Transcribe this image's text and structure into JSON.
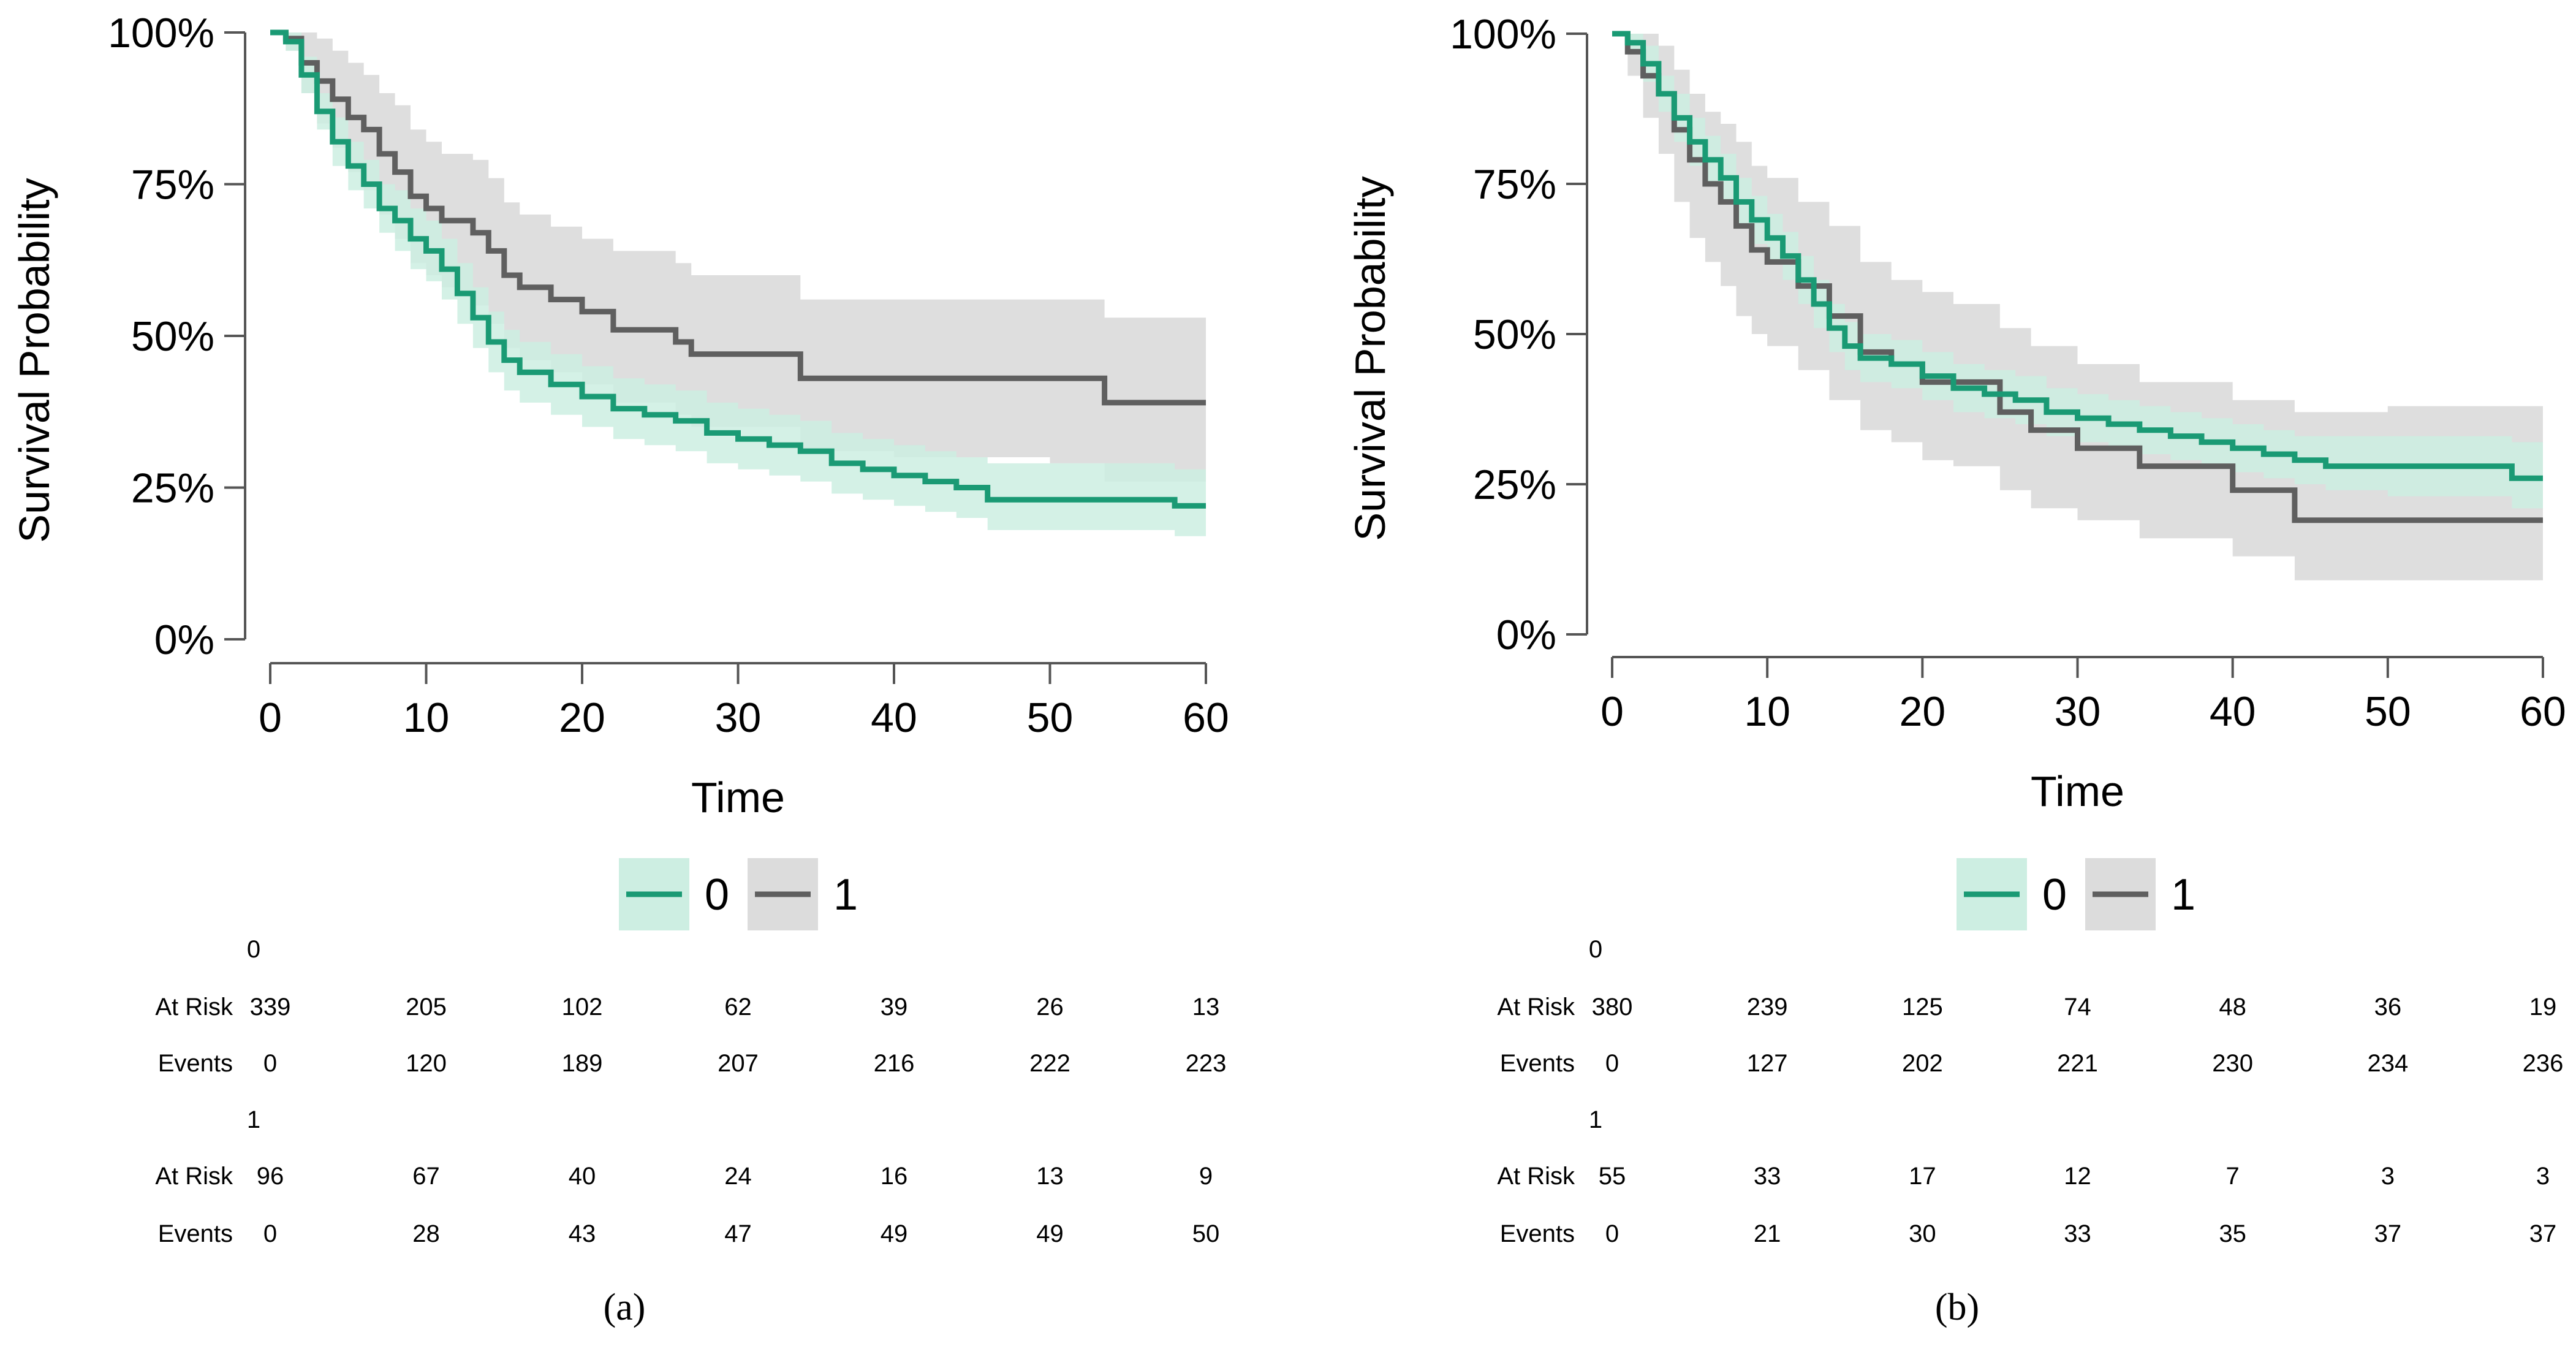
{
  "figure": {
    "panels": [
      {
        "label": "(a)",
        "label_letter": "a"
      },
      {
        "label": "(b)",
        "label_letter": "b"
      }
    ]
  },
  "colors": {
    "group0_line": "#1a9a74",
    "group0_band": "#cdeee2",
    "group1_line": "#5f5f5f",
    "group1_band": "#dcdcdc",
    "axis": "#555555",
    "text": "#000000"
  },
  "chart_data": [
    {
      "type": "line",
      "subtype": "kaplan-meier",
      "panel": "a",
      "title": "",
      "xlabel": "Time",
      "ylabel": "Survival Probability",
      "xlim": [
        0,
        60
      ],
      "ylim": [
        0,
        1
      ],
      "x_ticks": [
        0,
        10,
        20,
        30,
        40,
        50,
        60
      ],
      "y_ticks": [
        0,
        0.25,
        0.5,
        0.75,
        1
      ],
      "y_tick_labels": [
        "0%",
        "25%",
        "50%",
        "75%",
        "100%"
      ],
      "legend": {
        "position": "bottom-center",
        "entries": [
          "0",
          "1"
        ]
      },
      "series": [
        {
          "name": "0",
          "x": [
            0,
            1,
            2,
            3,
            4,
            5,
            6,
            7,
            8,
            9,
            10,
            11,
            12,
            13,
            14,
            15,
            16,
            18,
            20,
            22,
            24,
            26,
            28,
            30,
            32,
            34,
            36,
            38,
            40,
            42,
            44,
            46,
            50,
            54,
            58,
            60
          ],
          "y": [
            1.0,
            0.985,
            0.93,
            0.87,
            0.82,
            0.78,
            0.75,
            0.71,
            0.69,
            0.66,
            0.64,
            0.61,
            0.57,
            0.53,
            0.49,
            0.46,
            0.44,
            0.42,
            0.4,
            0.38,
            0.37,
            0.36,
            0.34,
            0.33,
            0.32,
            0.31,
            0.29,
            0.28,
            0.27,
            0.26,
            0.25,
            0.23,
            0.23,
            0.23,
            0.22,
            0.22
          ],
          "lower": [
            1.0,
            0.97,
            0.9,
            0.84,
            0.78,
            0.74,
            0.71,
            0.67,
            0.64,
            0.61,
            0.59,
            0.56,
            0.52,
            0.48,
            0.44,
            0.41,
            0.39,
            0.37,
            0.35,
            0.33,
            0.32,
            0.31,
            0.29,
            0.28,
            0.27,
            0.26,
            0.24,
            0.23,
            0.22,
            0.21,
            0.2,
            0.18,
            0.18,
            0.18,
            0.17,
            0.16
          ],
          "upper": [
            1.0,
            1.0,
            0.96,
            0.9,
            0.86,
            0.82,
            0.79,
            0.75,
            0.74,
            0.71,
            0.69,
            0.66,
            0.62,
            0.58,
            0.54,
            0.51,
            0.49,
            0.47,
            0.45,
            0.43,
            0.42,
            0.41,
            0.39,
            0.38,
            0.37,
            0.36,
            0.34,
            0.33,
            0.32,
            0.31,
            0.3,
            0.29,
            0.29,
            0.29,
            0.28,
            0.28
          ]
        },
        {
          "name": "1",
          "x": [
            0,
            1,
            2,
            3,
            4,
            5,
            6,
            7,
            8,
            9,
            10,
            11,
            12,
            13,
            14,
            15,
            16,
            18,
            20,
            22,
            26,
            27,
            30,
            34,
            40,
            50,
            53.5,
            60
          ],
          "y": [
            1.0,
            0.99,
            0.95,
            0.92,
            0.89,
            0.86,
            0.84,
            0.8,
            0.77,
            0.73,
            0.71,
            0.69,
            0.69,
            0.67,
            0.64,
            0.6,
            0.58,
            0.56,
            0.54,
            0.51,
            0.49,
            0.47,
            0.47,
            0.43,
            0.43,
            0.43,
            0.39,
            0.39
          ],
          "lower": [
            1.0,
            0.97,
            0.9,
            0.85,
            0.81,
            0.77,
            0.74,
            0.7,
            0.66,
            0.62,
            0.6,
            0.58,
            0.57,
            0.55,
            0.52,
            0.48,
            0.46,
            0.44,
            0.42,
            0.39,
            0.37,
            0.35,
            0.35,
            0.31,
            0.3,
            0.29,
            0.26,
            0.26
          ],
          "upper": [
            1.0,
            1.0,
            1.0,
            0.99,
            0.97,
            0.95,
            0.93,
            0.9,
            0.88,
            0.84,
            0.82,
            0.8,
            0.8,
            0.79,
            0.76,
            0.72,
            0.7,
            0.68,
            0.66,
            0.64,
            0.62,
            0.6,
            0.6,
            0.56,
            0.56,
            0.56,
            0.53,
            0.53
          ]
        }
      ],
      "risk_table": {
        "row_labels": [
          "At Risk",
          "Events"
        ],
        "time_points": [
          0,
          10,
          20,
          30,
          40,
          50,
          60
        ],
        "groups": [
          {
            "name": "0",
            "at_risk": [
              339,
              205,
              102,
              62,
              39,
              26,
              13
            ],
            "events": [
              0,
              120,
              189,
              207,
              216,
              222,
              223
            ]
          },
          {
            "name": "1",
            "at_risk": [
              96,
              67,
              40,
              24,
              16,
              13,
              9
            ],
            "events": [
              0,
              28,
              43,
              47,
              49,
              49,
              50
            ]
          }
        ]
      }
    },
    {
      "type": "line",
      "subtype": "kaplan-meier",
      "panel": "b",
      "title": "",
      "xlabel": "Time",
      "ylabel": "Survival Probability",
      "xlim": [
        0,
        60
      ],
      "ylim": [
        0,
        1
      ],
      "x_ticks": [
        0,
        10,
        20,
        30,
        40,
        50,
        60
      ],
      "y_ticks": [
        0,
        0.25,
        0.5,
        0.75,
        1
      ],
      "y_tick_labels": [
        "0%",
        "25%",
        "50%",
        "75%",
        "100%"
      ],
      "legend": {
        "position": "bottom-center",
        "entries": [
          "0",
          "1"
        ]
      },
      "series": [
        {
          "name": "0",
          "x": [
            0,
            1,
            2,
            3,
            4,
            5,
            6,
            7,
            8,
            9,
            10,
            11,
            12,
            13,
            14,
            15,
            16,
            18,
            20,
            22,
            24,
            26,
            28,
            30,
            32,
            34,
            36,
            38,
            40,
            42,
            44,
            46,
            50,
            54,
            58,
            60
          ],
          "y": [
            1.0,
            0.985,
            0.95,
            0.9,
            0.86,
            0.82,
            0.79,
            0.76,
            0.72,
            0.69,
            0.66,
            0.63,
            0.59,
            0.55,
            0.51,
            0.48,
            0.46,
            0.45,
            0.43,
            0.41,
            0.4,
            0.39,
            0.37,
            0.36,
            0.35,
            0.34,
            0.33,
            0.32,
            0.31,
            0.3,
            0.29,
            0.28,
            0.28,
            0.28,
            0.26,
            0.26
          ],
          "lower": [
            1.0,
            0.97,
            0.92,
            0.87,
            0.82,
            0.78,
            0.75,
            0.72,
            0.68,
            0.65,
            0.62,
            0.59,
            0.55,
            0.51,
            0.47,
            0.44,
            0.42,
            0.41,
            0.39,
            0.37,
            0.36,
            0.35,
            0.33,
            0.32,
            0.31,
            0.3,
            0.29,
            0.28,
            0.27,
            0.26,
            0.25,
            0.24,
            0.23,
            0.23,
            0.21,
            0.2
          ],
          "upper": [
            1.0,
            1.0,
            0.98,
            0.93,
            0.9,
            0.86,
            0.83,
            0.8,
            0.76,
            0.73,
            0.7,
            0.67,
            0.63,
            0.59,
            0.55,
            0.52,
            0.5,
            0.49,
            0.47,
            0.45,
            0.44,
            0.43,
            0.41,
            0.4,
            0.39,
            0.38,
            0.37,
            0.36,
            0.35,
            0.34,
            0.33,
            0.33,
            0.33,
            0.33,
            0.32,
            0.31
          ]
        },
        {
          "name": "1",
          "x": [
            0,
            1,
            2,
            3,
            4,
            5,
            6,
            7,
            8,
            9,
            10,
            12,
            14,
            16,
            18,
            20,
            22,
            25,
            27,
            30,
            34,
            40,
            44,
            50,
            60
          ],
          "y": [
            1.0,
            0.97,
            0.93,
            0.9,
            0.84,
            0.79,
            0.75,
            0.72,
            0.68,
            0.64,
            0.62,
            0.58,
            0.53,
            0.47,
            0.45,
            0.42,
            0.42,
            0.37,
            0.34,
            0.31,
            0.28,
            0.24,
            0.19,
            0.19,
            0.19
          ],
          "lower": [
            1.0,
            0.93,
            0.86,
            0.8,
            0.72,
            0.66,
            0.62,
            0.58,
            0.53,
            0.5,
            0.48,
            0.44,
            0.39,
            0.34,
            0.32,
            0.29,
            0.28,
            0.24,
            0.21,
            0.19,
            0.16,
            0.13,
            0.09,
            0.09,
            0.09
          ],
          "upper": [
            1.0,
            1.0,
            1.0,
            0.98,
            0.94,
            0.9,
            0.87,
            0.85,
            0.82,
            0.78,
            0.76,
            0.72,
            0.68,
            0.62,
            0.59,
            0.57,
            0.55,
            0.51,
            0.48,
            0.45,
            0.42,
            0.39,
            0.37,
            0.38,
            0.39
          ]
        }
      ],
      "risk_table": {
        "row_labels": [
          "At Risk",
          "Events"
        ],
        "time_points": [
          0,
          10,
          20,
          30,
          40,
          50,
          60
        ],
        "groups": [
          {
            "name": "0",
            "at_risk": [
              380,
              239,
              125,
              74,
              48,
              36,
              19
            ],
            "events": [
              0,
              127,
              202,
              221,
              230,
              234,
              236
            ]
          },
          {
            "name": "1",
            "at_risk": [
              55,
              33,
              17,
              12,
              7,
              3,
              3
            ],
            "events": [
              0,
              21,
              30,
              33,
              35,
              37,
              37
            ]
          }
        ]
      }
    }
  ]
}
